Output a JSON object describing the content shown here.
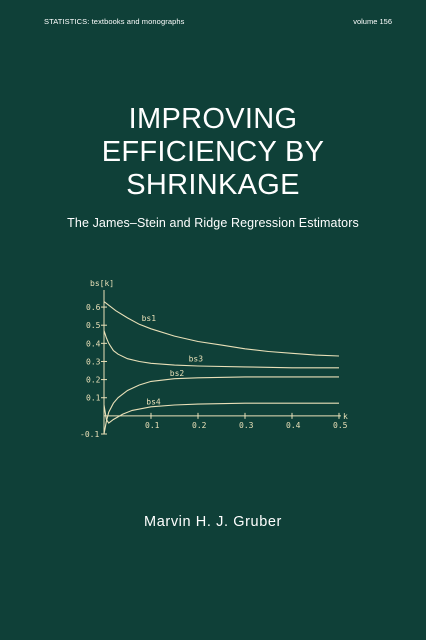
{
  "header": {
    "series": "STATISTICS:",
    "series_sub": "textbooks and monographs",
    "volume": "volume 156"
  },
  "title_lines": [
    "IMPROVING",
    "EFFICIENCY BY",
    "SHRINKAGE"
  ],
  "subtitle": "The James–Stein and Ridge Regression Estimators",
  "author": "Marvin H. J. Gruber",
  "colors": {
    "background": "#0f4038",
    "curve": "#e9e0b8",
    "text": "#ffffff"
  },
  "chart_data": {
    "type": "line",
    "ylabel": "bs[k]",
    "xlabel": "k",
    "xlim": [
      0,
      0.5
    ],
    "ylim": [
      -0.1,
      0.65
    ],
    "x_ticks": [
      "0.1",
      "0.2",
      "0.3",
      "0.4",
      "0.5"
    ],
    "y_ticks": [
      "-0.1",
      "0.1",
      "0.2",
      "0.3",
      "0.4",
      "0.5",
      "0.6"
    ],
    "x_tick_values": [
      0.1,
      0.2,
      0.3,
      0.4,
      0.5
    ],
    "y_tick_values": [
      -0.1,
      0.1,
      0.2,
      0.3,
      0.4,
      0.5,
      0.6
    ],
    "series": [
      {
        "name": "bs1",
        "x": [
          0,
          0.025,
          0.05,
          0.075,
          0.1,
          0.15,
          0.2,
          0.25,
          0.3,
          0.35,
          0.4,
          0.45,
          0.5
        ],
        "values": [
          0.63,
          0.58,
          0.54,
          0.505,
          0.48,
          0.44,
          0.41,
          0.39,
          0.37,
          0.355,
          0.345,
          0.335,
          0.33
        ]
      },
      {
        "name": "bs3",
        "x": [
          0,
          0.005,
          0.01,
          0.02,
          0.03,
          0.05,
          0.075,
          0.1,
          0.15,
          0.2,
          0.3,
          0.4,
          0.5
        ],
        "values": [
          0.47,
          0.43,
          0.4,
          0.36,
          0.34,
          0.315,
          0.3,
          0.29,
          0.28,
          0.275,
          0.27,
          0.265,
          0.265
        ]
      },
      {
        "name": "bs2",
        "x": [
          0,
          0.005,
          0.01,
          0.02,
          0.03,
          0.05,
          0.075,
          0.1,
          0.15,
          0.2,
          0.3,
          0.4,
          0.5
        ],
        "values": [
          -0.1,
          -0.03,
          0.02,
          0.07,
          0.1,
          0.14,
          0.17,
          0.19,
          0.205,
          0.21,
          0.215,
          0.215,
          0.215
        ]
      },
      {
        "name": "bs4",
        "x": [
          0,
          0.005,
          0.01,
          0.02,
          0.04,
          0.06,
          0.1,
          0.15,
          0.2,
          0.3,
          0.4,
          0.5
        ],
        "values": [
          0.06,
          -0.02,
          -0.04,
          -0.02,
          0.01,
          0.03,
          0.05,
          0.06,
          0.065,
          0.07,
          0.07,
          0.07
        ]
      }
    ]
  }
}
